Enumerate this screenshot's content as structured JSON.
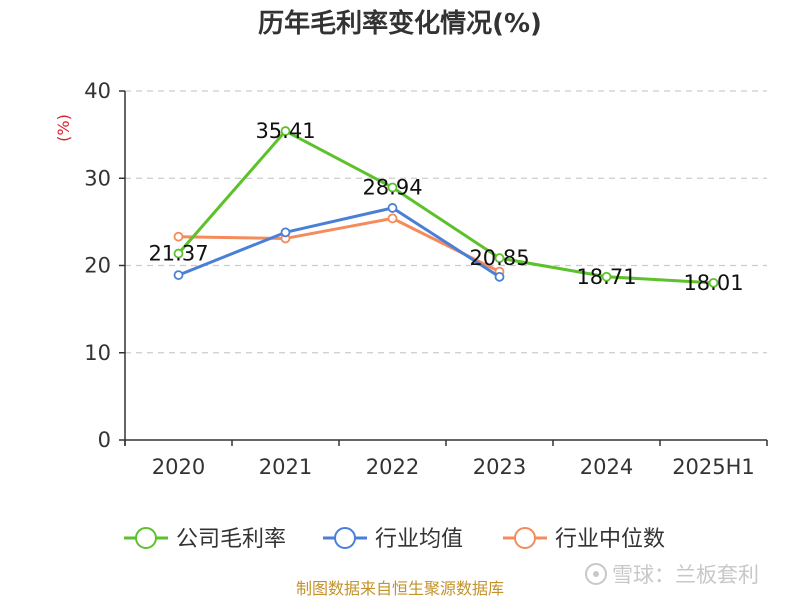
{
  "chart_data": {
    "type": "line",
    "title": "历年毛利率变化情况(%)",
    "ylabel": "(%)",
    "categories": [
      "2020",
      "2021",
      "2022",
      "2023",
      "2024",
      "2025H1"
    ],
    "ylim": [
      0,
      40
    ],
    "yticks": [
      "0",
      "10",
      "20",
      "30",
      "40"
    ],
    "grid": true,
    "legend": "bottom",
    "series": [
      {
        "name": "公司毛利率",
        "color": "#5cc12a",
        "values": [
          21.37,
          35.41,
          28.94,
          20.85,
          18.71,
          18.01
        ],
        "labels": [
          "21.37",
          "35.41",
          "28.94",
          "20.85",
          "18.71",
          "18.01"
        ]
      },
      {
        "name": "行业均值",
        "color": "#4a7fd8",
        "values": [
          18.9,
          23.8,
          26.6,
          18.7,
          null,
          null
        ]
      },
      {
        "name": "行业中位数",
        "color": "#f48b5a",
        "values": [
          23.3,
          23.1,
          25.4,
          19.3,
          null,
          null
        ]
      }
    ]
  },
  "footer": {
    "source": "制图数据来自恒生聚源数据库"
  },
  "watermark": {
    "text": "雪球：兰板套利"
  }
}
